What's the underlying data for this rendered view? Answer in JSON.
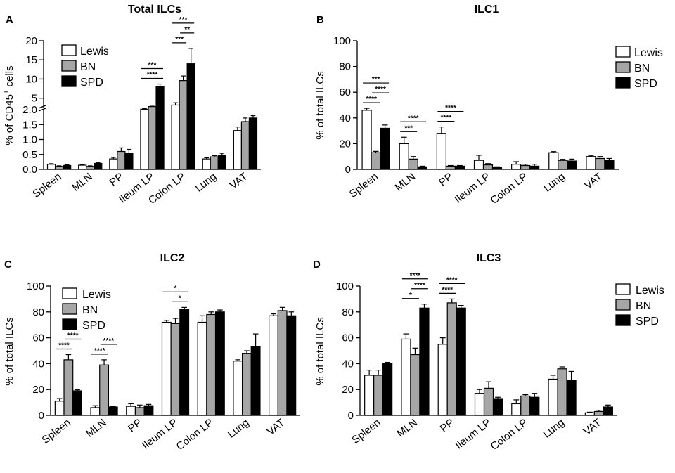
{
  "series_styles": [
    {
      "name": "Lewis",
      "color": "#ffffff"
    },
    {
      "name": "BN",
      "color": "#a6a6a6"
    },
    {
      "name": "SPD",
      "color": "#000000"
    }
  ],
  "chart_data": [
    {
      "id": "A",
      "panel_label": "A",
      "type": "bar",
      "title": "Total ILCs",
      "ylabel_pre": "% of CD45",
      "ylabel_sup": "+",
      "ylabel_post": " cells",
      "xlabel": "",
      "categories": [
        "Spleen",
        "MLN",
        "PP",
        "Ileum LP",
        "Colon LP",
        "Lung",
        "VAT"
      ],
      "axis_break": true,
      "lower_ticks": [
        "0.0",
        "0.5",
        "1.0",
        "1.5",
        "2.0"
      ],
      "upper_ticks": [
        "5",
        "10",
        "15",
        "20"
      ],
      "ylim_lower": [
        0,
        2
      ],
      "ylim_upper": [
        2,
        20
      ],
      "legend": [
        "Lewis",
        "BN",
        "SPD"
      ],
      "series": [
        {
          "name": "Lewis",
          "values": [
            0.17,
            0.14,
            0.35,
            2.1,
            3.2,
            0.35,
            1.3
          ],
          "errors": [
            0.02,
            0.02,
            0.05,
            0.15,
            0.6,
            0.04,
            0.12
          ]
        },
        {
          "name": "BN",
          "values": [
            0.1,
            0.1,
            0.6,
            2.8,
            9.6,
            0.42,
            1.6
          ],
          "errors": [
            0.02,
            0.02,
            0.12,
            0.1,
            1.2,
            0.04,
            0.12
          ]
        },
        {
          "name": "SPD",
          "values": [
            0.13,
            0.2,
            0.55,
            8.0,
            14.0,
            0.48,
            1.72
          ],
          "errors": [
            0.02,
            0.02,
            0.12,
            0.7,
            4.0,
            0.06,
            0.08
          ]
        }
      ],
      "significance": [
        {
          "category": 3,
          "from": 0,
          "to": 2,
          "label": "****"
        },
        {
          "category": 3,
          "from": 0,
          "to": 2,
          "label": "***"
        },
        {
          "category": 4,
          "from": 0,
          "to": 1,
          "label": "***"
        },
        {
          "category": 4,
          "from": 1,
          "to": 2,
          "label": "**"
        },
        {
          "category": 4,
          "from": 0,
          "to": 2,
          "label": "***"
        }
      ]
    },
    {
      "id": "B",
      "panel_label": "B",
      "type": "bar",
      "title": "ILC1",
      "ylabel_pre": "% of total ILCs",
      "ylabel_sup": "",
      "ylabel_post": "",
      "xlabel": "",
      "categories": [
        "Spleen",
        "MLN",
        "PP",
        "Ileum LP",
        "Colon LP",
        "Lung",
        "VAT"
      ],
      "ylim": [
        0,
        100
      ],
      "yticks": [
        "0",
        "20",
        "40",
        "60",
        "80",
        "100"
      ],
      "legend": [
        "Lewis",
        "BN",
        "SPD"
      ],
      "series": [
        {
          "name": "Lewis",
          "values": [
            46,
            20,
            28,
            7,
            4,
            13,
            10
          ],
          "errors": [
            1.5,
            5,
            5,
            4,
            2,
            0.8,
            0.8
          ]
        },
        {
          "name": "BN",
          "values": [
            13,
            8,
            2.5,
            3.5,
            3,
            7,
            8.5
          ],
          "errors": [
            1,
            2,
            0.5,
            1,
            1,
            0.8,
            1.5
          ]
        },
        {
          "name": "SPD",
          "values": [
            32,
            2,
            2.5,
            1.5,
            2.5,
            6.5,
            7
          ],
          "errors": [
            2.5,
            0.5,
            0.5,
            0.5,
            1.5,
            1.5,
            1.5
          ]
        }
      ],
      "significance": [
        {
          "category": 0,
          "from": 0,
          "to": 1,
          "label": "****"
        },
        {
          "category": 0,
          "from": 1,
          "to": 2,
          "label": "****"
        },
        {
          "category": 0,
          "from": 0,
          "to": 2,
          "label": "***"
        },
        {
          "category": 1,
          "from": 0,
          "to": 1,
          "label": "***"
        },
        {
          "category": 1,
          "from": 0,
          "to": 2,
          "label": "****"
        },
        {
          "category": 2,
          "from": 0,
          "to": 1,
          "label": "****"
        },
        {
          "category": 2,
          "from": 0,
          "to": 2,
          "label": "****"
        }
      ]
    },
    {
      "id": "C",
      "panel_label": "C",
      "type": "bar",
      "title": "ILC2",
      "ylabel_pre": "% of total ILCs",
      "ylabel_sup": "",
      "ylabel_post": "",
      "xlabel": "",
      "categories": [
        "Spleen",
        "MLN",
        "PP",
        "Ileum LP",
        "Colon LP",
        "Lung",
        "VAT"
      ],
      "ylim": [
        0,
        100
      ],
      "yticks": [
        "0",
        "20",
        "40",
        "60",
        "80",
        "100"
      ],
      "legend": [
        "Lewis",
        "BN",
        "SPD"
      ],
      "series": [
        {
          "name": "Lewis",
          "values": [
            11,
            6,
            7,
            72,
            72,
            42,
            77
          ],
          "errors": [
            2,
            1.5,
            2,
            1.5,
            5,
            1,
            1.5
          ]
        },
        {
          "name": "BN",
          "values": [
            43,
            39,
            6,
            71,
            78,
            48,
            81
          ],
          "errors": [
            4,
            4,
            2,
            4,
            2,
            2,
            2.5
          ]
        },
        {
          "name": "SPD",
          "values": [
            19,
            6.5,
            7.5,
            82,
            80,
            53,
            77
          ],
          "errors": [
            0.8,
            0.5,
            1,
            1.5,
            1.5,
            10,
            3
          ]
        }
      ],
      "significance": [
        {
          "category": 0,
          "from": 0,
          "to": 1,
          "label": "****"
        },
        {
          "category": 0,
          "from": 1,
          "to": 2,
          "label": "****"
        },
        {
          "category": 1,
          "from": 0,
          "to": 1,
          "label": "****"
        },
        {
          "category": 1,
          "from": 1,
          "to": 2,
          "label": "****"
        },
        {
          "category": 3,
          "from": 1,
          "to": 2,
          "label": "*"
        },
        {
          "category": 3,
          "from": 0,
          "to": 2,
          "label": "*"
        }
      ]
    },
    {
      "id": "D",
      "panel_label": "D",
      "type": "bar",
      "title": "ILC3",
      "ylabel_pre": "% of total ILCs",
      "ylabel_sup": "",
      "ylabel_post": "",
      "xlabel": "",
      "categories": [
        "Spleen",
        "MLN",
        "PP",
        "Ileum LP",
        "Colon LP",
        "Lung",
        "VAT"
      ],
      "ylim": [
        0,
        100
      ],
      "yticks": [
        "0",
        "20",
        "40",
        "60",
        "80",
        "100"
      ],
      "legend": [
        "Lewis",
        "BN",
        "SPD"
      ],
      "series": [
        {
          "name": "Lewis",
          "values": [
            31,
            59,
            55,
            17,
            9,
            28,
            2
          ],
          "errors": [
            4,
            4,
            5,
            3,
            3,
            3,
            0.5
          ]
        },
        {
          "name": "BN",
          "values": [
            31,
            47,
            87,
            21,
            15,
            36,
            3
          ],
          "errors": [
            4,
            5,
            3,
            5,
            1,
            1.5,
            1
          ]
        },
        {
          "name": "SPD",
          "values": [
            40,
            83,
            83,
            13,
            14,
            27,
            6.5
          ],
          "errors": [
            1,
            3,
            2,
            1,
            3,
            7,
            1.5
          ]
        }
      ],
      "significance": [
        {
          "category": 1,
          "from": 0,
          "to": 1,
          "label": "*"
        },
        {
          "category": 1,
          "from": 1,
          "to": 2,
          "label": "****"
        },
        {
          "category": 1,
          "from": 0,
          "to": 2,
          "label": "****"
        },
        {
          "category": 2,
          "from": 0,
          "to": 1,
          "label": "****"
        },
        {
          "category": 2,
          "from": 0,
          "to": 2,
          "label": "****"
        }
      ]
    }
  ]
}
